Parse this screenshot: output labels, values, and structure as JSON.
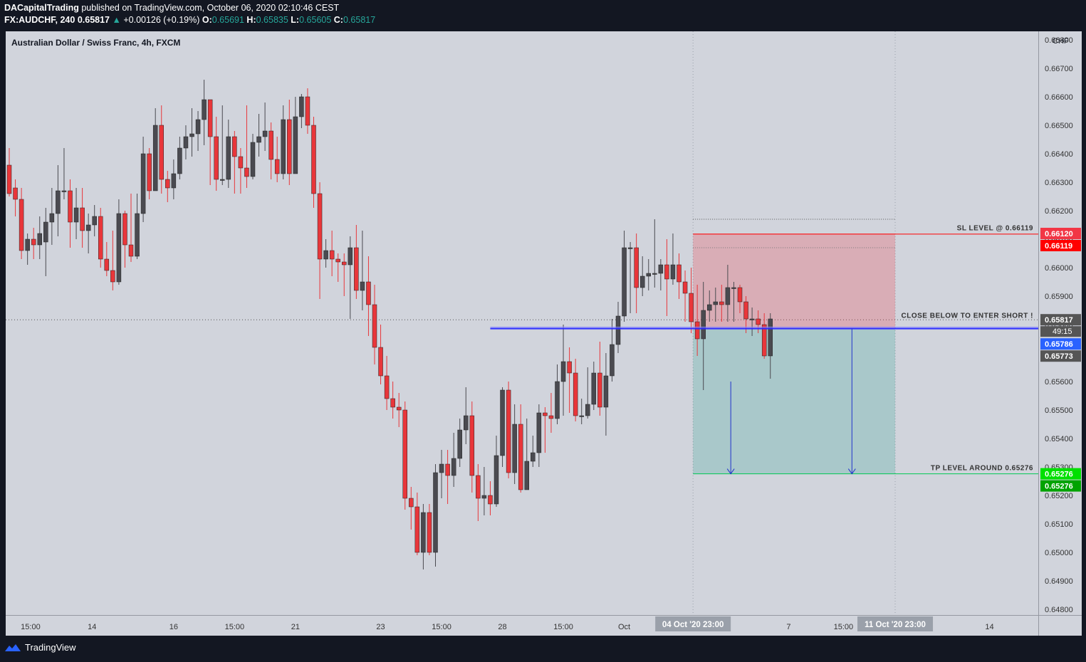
{
  "header": {
    "author": "DACapitalTrading",
    "published_text": "published on TradingView.com, October 06, 2020 02:10:46 CEST",
    "symbol": "FX:AUDCHF, 240",
    "last": "0.65817",
    "change": "+0.00126 (+0.19%)",
    "o_label": "O:",
    "o_value": "0.65691",
    "h_label": "H:",
    "h_value": "0.65835",
    "l_label": "L:",
    "l_value": "0.65605",
    "c_label": "C:",
    "c_value": "0.65817"
  },
  "chart_title": "Australian Dollar / Swiss Franc, 4h, FXCM",
  "currency": "CHF",
  "footer": {
    "brand": "TradingView"
  },
  "colors": {
    "up": "#26a69a",
    "bull_body": "#4a4a50",
    "bear_body": "#e8363a",
    "wick_bear": "#e8363a",
    "wick_bull": "#4a4a50",
    "sl": "#ff0000",
    "tp": "#00c853",
    "entry_line": "#2d2dff",
    "stop_zone": "rgba(242,54,69,0.25)",
    "target_zone": "rgba(8,153,129,0.2)"
  },
  "chart_data": {
    "type": "candlestick",
    "ylim": [
      0.6478,
      0.6683
    ],
    "y_ticks": [
      0.668,
      0.667,
      0.666,
      0.665,
      0.664,
      0.663,
      0.662,
      0.661,
      0.66,
      0.659,
      0.658,
      0.657,
      0.656,
      0.655,
      0.654,
      0.653,
      0.652,
      0.651,
      0.65,
      0.649,
      0.648
    ],
    "y_tick_labels": [
      "0.66800",
      "0.66700",
      "0.66600",
      "0.66500",
      "0.66400",
      "0.66300",
      "0.66200",
      "0.66100",
      "0.66000",
      "0.65900",
      "0.65800",
      "0.65700",
      "0.65600",
      "0.65500",
      "0.65400",
      "0.65300",
      "0.65200",
      "0.65100",
      "0.65000",
      "0.64900",
      "0.64800"
    ],
    "x_labels": [
      {
        "bar": 3.5,
        "label": "15:00"
      },
      {
        "bar": 13.6,
        "label": "14"
      },
      {
        "bar": 27,
        "label": "16"
      },
      {
        "bar": 37,
        "label": "15:00"
      },
      {
        "bar": 47,
        "label": "21"
      },
      {
        "bar": 61,
        "label": "23"
      },
      {
        "bar": 71,
        "label": "15:00"
      },
      {
        "bar": 81,
        "label": "28"
      },
      {
        "bar": 91,
        "label": "15:00"
      },
      {
        "bar": 101,
        "label": "Oct"
      },
      {
        "bar": 128,
        "label": "7"
      },
      {
        "bar": 137,
        "label": "15:00"
      },
      {
        "bar": 161,
        "label": "14"
      }
    ],
    "x_highlights": [
      {
        "bar": 112.3,
        "label": "04 Oct '20 23:00"
      },
      {
        "bar": 145.5,
        "label": "11 Oct '20 23:00"
      }
    ],
    "candles": [
      [
        0.6636,
        0.6626,
        0.6642,
        0.6625
      ],
      [
        0.6628,
        0.6624,
        0.6631,
        0.6618
      ],
      [
        0.6624,
        0.6606,
        0.6628,
        0.6603
      ],
      [
        0.6606,
        0.661,
        0.6612,
        0.6601
      ],
      [
        0.661,
        0.6608,
        0.6614,
        0.6603
      ],
      [
        0.6608,
        0.6612,
        0.6618,
        0.6603
      ],
      [
        0.6609,
        0.6616,
        0.6621,
        0.6597
      ],
      [
        0.6616,
        0.6619,
        0.6628,
        0.6608
      ],
      [
        0.6619,
        0.6627,
        0.6636,
        0.6611
      ],
      [
        0.6627,
        0.6627,
        0.6642,
        0.6624
      ],
      [
        0.6627,
        0.6616,
        0.6631,
        0.6607
      ],
      [
        0.6616,
        0.6621,
        0.6628,
        0.661
      ],
      [
        0.6621,
        0.6613,
        0.6628,
        0.6607
      ],
      [
        0.6613,
        0.6615,
        0.6619,
        0.6605
      ],
      [
        0.6615,
        0.6618,
        0.6622,
        0.6611
      ],
      [
        0.6618,
        0.6603,
        0.6621,
        0.66
      ],
      [
        0.6603,
        0.6599,
        0.6609,
        0.6597
      ],
      [
        0.6599,
        0.6595,
        0.6613,
        0.6592
      ],
      [
        0.6595,
        0.6619,
        0.6624,
        0.6594
      ],
      [
        0.6619,
        0.6608,
        0.662,
        0.66
      ],
      [
        0.6608,
        0.6604,
        0.6626,
        0.6602
      ],
      [
        0.6604,
        0.6619,
        0.6626,
        0.6603
      ],
      [
        0.6619,
        0.664,
        0.6646,
        0.6616
      ],
      [
        0.664,
        0.6627,
        0.6642,
        0.6624
      ],
      [
        0.6627,
        0.665,
        0.6656,
        0.6627
      ],
      [
        0.665,
        0.6631,
        0.6657,
        0.6626
      ],
      [
        0.6631,
        0.6628,
        0.6634,
        0.6623
      ],
      [
        0.6628,
        0.6633,
        0.6638,
        0.6624
      ],
      [
        0.6633,
        0.6642,
        0.6646,
        0.6631
      ],
      [
        0.6642,
        0.6646,
        0.665,
        0.6638
      ],
      [
        0.6646,
        0.6647,
        0.6656,
        0.6639
      ],
      [
        0.6647,
        0.6652,
        0.6655,
        0.6641
      ],
      [
        0.6652,
        0.6659,
        0.6666,
        0.6643
      ],
      [
        0.6659,
        0.6646,
        0.6653,
        0.6629
      ],
      [
        0.6646,
        0.6631,
        0.6653,
        0.6627
      ],
      [
        0.6631,
        0.6631,
        0.6657,
        0.6629
      ],
      [
        0.6631,
        0.6646,
        0.6652,
        0.6628
      ],
      [
        0.6646,
        0.6639,
        0.6648,
        0.6626
      ],
      [
        0.6639,
        0.6635,
        0.6642,
        0.6626
      ],
      [
        0.6635,
        0.6632,
        0.6657,
        0.6628
      ],
      [
        0.6632,
        0.6644,
        0.6647,
        0.6631
      ],
      [
        0.6644,
        0.6646,
        0.6654,
        0.6639
      ],
      [
        0.6646,
        0.6648,
        0.6658,
        0.6641
      ],
      [
        0.6648,
        0.6638,
        0.6651,
        0.6631
      ],
      [
        0.6638,
        0.6633,
        0.6646,
        0.663
      ],
      [
        0.6633,
        0.6652,
        0.6657,
        0.6631
      ],
      [
        0.6652,
        0.6633,
        0.6659,
        0.6629
      ],
      [
        0.6633,
        0.6653,
        0.666,
        0.6633
      ],
      [
        0.6653,
        0.666,
        0.6661,
        0.6649
      ],
      [
        0.666,
        0.665,
        0.6663,
        0.6647
      ],
      [
        0.665,
        0.6626,
        0.6653,
        0.6621
      ],
      [
        0.6626,
        0.6603,
        0.663,
        0.6589
      ],
      [
        0.6603,
        0.6606,
        0.661,
        0.66
      ],
      [
        0.6606,
        0.6603,
        0.6613,
        0.6597
      ],
      [
        0.6603,
        0.6602,
        0.6605,
        0.6595
      ],
      [
        0.6602,
        0.6601,
        0.6605,
        0.659
      ],
      [
        0.6601,
        0.6607,
        0.6611,
        0.6582
      ],
      [
        0.6607,
        0.6592,
        0.6615,
        0.6589
      ],
      [
        0.6592,
        0.6595,
        0.6613,
        0.6585
      ],
      [
        0.6595,
        0.6587,
        0.6604,
        0.6576
      ],
      [
        0.6587,
        0.6572,
        0.6594,
        0.6566
      ],
      [
        0.6572,
        0.6562,
        0.658,
        0.6559
      ],
      [
        0.6562,
        0.6554,
        0.6569,
        0.655
      ],
      [
        0.6554,
        0.6551,
        0.656,
        0.6547
      ],
      [
        0.6551,
        0.655,
        0.6556,
        0.6544
      ],
      [
        0.655,
        0.6519,
        0.6553,
        0.6515
      ],
      [
        0.6519,
        0.6516,
        0.6523,
        0.6508
      ],
      [
        0.6516,
        0.65,
        0.6521,
        0.6499
      ],
      [
        0.65,
        0.6514,
        0.6517,
        0.6494
      ],
      [
        0.6514,
        0.65,
        0.6517,
        0.6499
      ],
      [
        0.65,
        0.6528,
        0.6531,
        0.6495
      ],
      [
        0.6528,
        0.6531,
        0.6536,
        0.6519
      ],
      [
        0.6531,
        0.6527,
        0.6536,
        0.6517
      ],
      [
        0.6527,
        0.6533,
        0.6542,
        0.6523
      ],
      [
        0.6533,
        0.6543,
        0.6547,
        0.653
      ],
      [
        0.6543,
        0.6548,
        0.6558,
        0.6538
      ],
      [
        0.6548,
        0.6527,
        0.6553,
        0.6521
      ],
      [
        0.6527,
        0.6519,
        0.6531,
        0.6511
      ],
      [
        0.6519,
        0.652,
        0.653,
        0.6513
      ],
      [
        0.652,
        0.6517,
        0.6525,
        0.6513
      ],
      [
        0.6517,
        0.6534,
        0.6541,
        0.6516
      ],
      [
        0.6534,
        0.6557,
        0.6558,
        0.653
      ],
      [
        0.6557,
        0.6528,
        0.656,
        0.6526
      ],
      [
        0.6528,
        0.6545,
        0.6552,
        0.6524
      ],
      [
        0.6545,
        0.6522,
        0.6552,
        0.6521
      ],
      [
        0.6522,
        0.6532,
        0.6547,
        0.6522
      ],
      [
        0.6532,
        0.6535,
        0.6541,
        0.653
      ],
      [
        0.6535,
        0.6549,
        0.6552,
        0.653
      ],
      [
        0.6549,
        0.6548,
        0.6551,
        0.6535
      ],
      [
        0.6548,
        0.6547,
        0.6556,
        0.6542
      ],
      [
        0.6547,
        0.656,
        0.6566,
        0.6545
      ],
      [
        0.656,
        0.6567,
        0.658,
        0.6548
      ],
      [
        0.6567,
        0.6563,
        0.6572,
        0.6549
      ],
      [
        0.6563,
        0.6548,
        0.6568,
        0.6546
      ],
      [
        0.6548,
        0.6548,
        0.6554,
        0.6545
      ],
      [
        0.6548,
        0.6552,
        0.6565,
        0.6547
      ],
      [
        0.6552,
        0.6563,
        0.6567,
        0.655
      ],
      [
        0.6563,
        0.6551,
        0.6574,
        0.6548
      ],
      [
        0.6551,
        0.6562,
        0.657,
        0.6541
      ],
      [
        0.6562,
        0.6573,
        0.6582,
        0.656
      ],
      [
        0.6573,
        0.6583,
        0.6588,
        0.657
      ],
      [
        0.6583,
        0.6607,
        0.6613,
        0.6581
      ],
      [
        0.6607,
        0.6607,
        0.6609,
        0.6584
      ],
      [
        0.6607,
        0.6593,
        0.6612,
        0.6584
      ],
      [
        0.6593,
        0.6597,
        0.6604,
        0.659
      ],
      [
        0.6597,
        0.6598,
        0.6603,
        0.6592
      ],
      [
        0.6598,
        0.6598,
        0.6617,
        0.6593
      ],
      [
        0.6598,
        0.6601,
        0.6603,
        0.6592
      ],
      [
        0.6601,
        0.6596,
        0.661,
        0.6583
      ],
      [
        0.6596,
        0.6601,
        0.6612,
        0.6594
      ],
      [
        0.6601,
        0.6595,
        0.6605,
        0.6589
      ],
      [
        0.6595,
        0.6591,
        0.6599,
        0.6581
      ],
      [
        0.6591,
        0.6581,
        0.66,
        0.6577
      ],
      [
        0.6581,
        0.6575,
        0.6594,
        0.6569
      ],
      [
        0.6575,
        0.6585,
        0.6595,
        0.6557
      ],
      [
        0.6585,
        0.6587,
        0.6592,
        0.6581
      ],
      [
        0.6587,
        0.6588,
        0.6593,
        0.6581
      ],
      [
        0.6588,
        0.6587,
        0.6594,
        0.6581
      ],
      [
        0.6587,
        0.6593,
        0.6601,
        0.6581
      ],
      [
        0.6593,
        0.6593,
        0.6595,
        0.6581
      ],
      [
        0.6593,
        0.6588,
        0.6594,
        0.6584
      ],
      [
        0.6588,
        0.6582,
        0.659,
        0.6577
      ],
      [
        0.6582,
        0.6582,
        0.6586,
        0.6576
      ],
      [
        0.6582,
        0.658,
        0.6585,
        0.6577
      ],
      [
        0.658,
        0.6569,
        0.6584,
        0.6568
      ],
      [
        0.6569,
        0.6582,
        0.6584,
        0.6561
      ]
    ],
    "sl_level": 0.66119,
    "sl_zone_top": 0.6612,
    "entry_level": 0.65786,
    "tp_level": 0.65276,
    "current_price": 0.65817,
    "level_low": 0.65773,
    "countdown": "49:15",
    "position_start_bar": 112.3,
    "position_end_bar": 145.5,
    "annotations": {
      "sl": "SL LEVEL @ 0.66119",
      "entry": "CLOSE BELOW TO ENTER SHORT !",
      "tp": "TP LEVEL AROUND 0.65276"
    },
    "price_labels": [
      {
        "price": 0.6612,
        "label": "0.66120",
        "color": "#f23645"
      },
      {
        "price": 0.66119,
        "label": "0.66119",
        "color": "#ff0000"
      },
      {
        "price": 0.65817,
        "label": "0.65817",
        "color": "#555555"
      },
      {
        "price": 0.65786,
        "label": "0.65786",
        "color": "#2962ff"
      },
      {
        "price": 0.65773,
        "label": "0.65773",
        "color": "#555555"
      },
      {
        "price": 0.65276,
        "label": "0.65276",
        "color": "#00e000"
      },
      {
        "price": 0.65276,
        "label": "0.65276",
        "color": "#00a300"
      }
    ]
  }
}
